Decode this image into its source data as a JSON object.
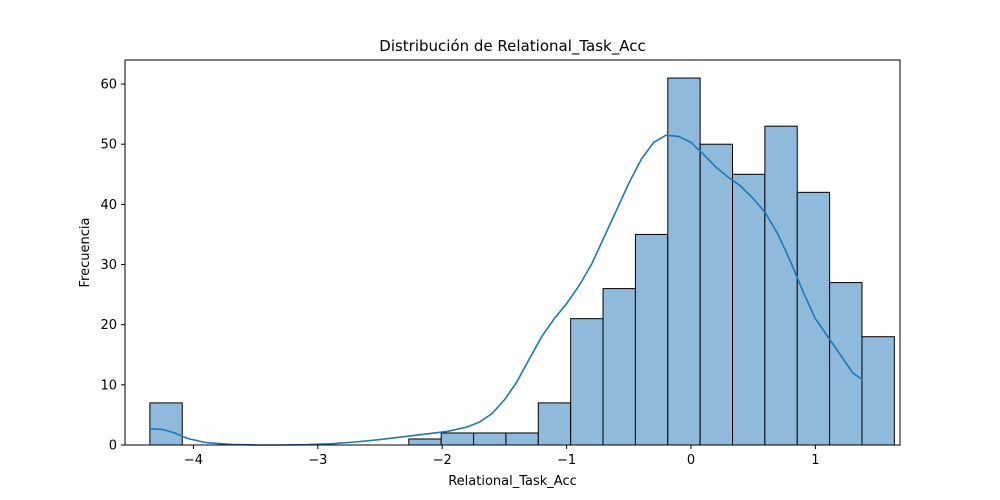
{
  "chart_data": {
    "type": "bar",
    "title": "Distribución de Relational_Task_Acc",
    "xlabel": "Relational_Task_Acc",
    "ylabel": "Frecuencia",
    "xlim": [
      -4.55,
      1.68
    ],
    "ylim": [
      0,
      64
    ],
    "x_ticks": [
      -4,
      -3,
      -2,
      -1,
      0,
      1
    ],
    "x_tick_labels": [
      "−4",
      "−3",
      "−2",
      "−1",
      "0",
      "1"
    ],
    "y_ticks": [
      0,
      10,
      20,
      30,
      40,
      50,
      60
    ],
    "y_tick_labels": [
      "0",
      "10",
      "20",
      "30",
      "40",
      "50",
      "60"
    ],
    "grid": false,
    "bins": {
      "start": -4.35,
      "width": 0.2602,
      "counts": [
        7,
        0,
        0,
        0,
        0,
        0,
        0,
        0,
        1,
        2,
        2,
        2,
        7,
        21,
        26,
        35,
        61,
        50,
        45,
        53,
        42,
        27,
        18
      ]
    },
    "kde": {
      "x": [
        -4.35,
        -4.25,
        -4.15,
        -4.05,
        -3.9,
        -3.7,
        -3.5,
        -3.3,
        -3.1,
        -2.9,
        -2.7,
        -2.5,
        -2.3,
        -2.1,
        -1.95,
        -1.8,
        -1.7,
        -1.6,
        -1.5,
        -1.4,
        -1.3,
        -1.2,
        -1.1,
        -1.0,
        -0.9,
        -0.8,
        -0.7,
        -0.6,
        -0.5,
        -0.4,
        -0.3,
        -0.2,
        -0.1,
        0.0,
        0.1,
        0.2,
        0.3,
        0.4,
        0.5,
        0.6,
        0.7,
        0.8,
        0.9,
        1.0,
        1.1,
        1.2,
        1.3,
        1.38
      ],
      "y": [
        2.7,
        2.6,
        2.0,
        1.1,
        0.4,
        0.1,
        0.0,
        0.0,
        0.05,
        0.2,
        0.5,
        0.9,
        1.4,
        1.9,
        2.3,
        3.0,
        3.8,
        5.2,
        7.5,
        10.5,
        14.3,
        18.0,
        21.0,
        23.5,
        26.5,
        30.0,
        34.5,
        39.0,
        43.5,
        47.5,
        50.3,
        51.5,
        51.3,
        50.3,
        48.3,
        46.2,
        44.5,
        43.0,
        41.0,
        38.5,
        35.0,
        30.5,
        25.5,
        21.0,
        18.0,
        15.0,
        12.0,
        10.8
      ]
    },
    "colors": {
      "bar_fill": "#8fbadb",
      "bar_edge": "#000000",
      "kde_line": "#1f77b4"
    }
  }
}
